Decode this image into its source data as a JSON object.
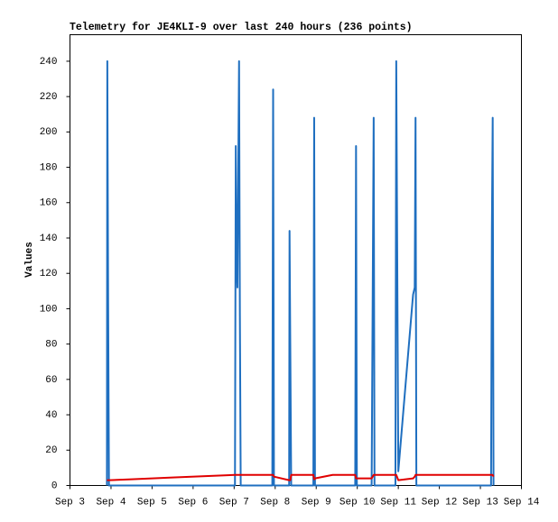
{
  "chart_data": {
    "type": "line",
    "title": "Telemetry for JE4KLI-9 over last 240 hours (236 points)",
    "y_label": "Values",
    "x": [
      3.9,
      3.91,
      3.93,
      3.95,
      4.5,
      5.5,
      6.5,
      7.02,
      7.04,
      7.06,
      7.08,
      7.12,
      7.14,
      7.16,
      7.93,
      7.95,
      7.97,
      8.34,
      8.35,
      8.37,
      8.39,
      8.93,
      8.95,
      8.97,
      9.4,
      9.95,
      9.97,
      9.99,
      10.35,
      10.4,
      10.42,
      10.93,
      10.95,
      11.0,
      11.36,
      11.4,
      11.42,
      11.44,
      13.26,
      13.28,
      13.3,
      13.32
    ],
    "series": [
      {
        "color": "#1f6fc0",
        "values": [
          0,
          240,
          104,
          0,
          0,
          0,
          0,
          0,
          192,
          128,
          112,
          240,
          96,
          0,
          0,
          224,
          0,
          0,
          144,
          72,
          0,
          0,
          208,
          0,
          0,
          0,
          192,
          0,
          0,
          208,
          0,
          0,
          240,
          8,
          108,
          112,
          208,
          0,
          0,
          144,
          208,
          0
        ]
      },
      {
        "color": "#e00000",
        "values": [
          3,
          3,
          3,
          3,
          3.5,
          4.5,
          5.5,
          6,
          6,
          6,
          6,
          6,
          6,
          6,
          6,
          6,
          5,
          3,
          3,
          3,
          6,
          6,
          3.5,
          4,
          6,
          6,
          4,
          4,
          4,
          6,
          6,
          6,
          6,
          3,
          4,
          5,
          6,
          6,
          6,
          6,
          6,
          5
        ]
      }
    ],
    "xlim": [
      3,
      14
    ],
    "xticks": [
      {
        "value": 3,
        "label": "Sep 3"
      },
      {
        "value": 4,
        "label": "Sep 4"
      },
      {
        "value": 5,
        "label": "Sep 5"
      },
      {
        "value": 6,
        "label": "Sep 6"
      },
      {
        "value": 7,
        "label": "Sep 7"
      },
      {
        "value": 8,
        "label": "Sep 8"
      },
      {
        "value": 9,
        "label": "Sep 9"
      },
      {
        "value": 10,
        "label": "Sep 10"
      },
      {
        "value": 11,
        "label": "Sep 11"
      },
      {
        "value": 12,
        "label": "Sep 12"
      },
      {
        "value": 13,
        "label": "Sep 13"
      },
      {
        "value": 14,
        "label": "Sep 14"
      }
    ],
    "ylim": [
      0,
      255
    ],
    "yticks": [
      0,
      20,
      40,
      60,
      80,
      100,
      120,
      140,
      160,
      180,
      200,
      220,
      240
    ],
    "grid": false
  }
}
